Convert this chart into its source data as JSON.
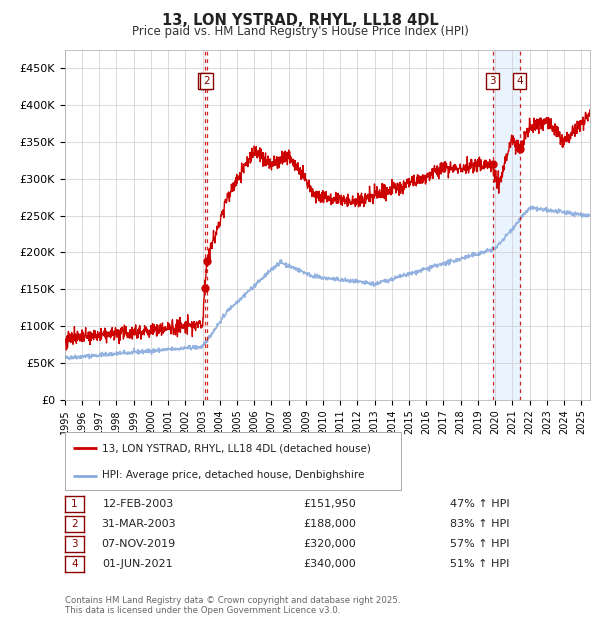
{
  "title": "13, LON YSTRAD, RHYL, LL18 4DL",
  "subtitle": "Price paid vs. HM Land Registry's House Price Index (HPI)",
  "ylabel_ticks": [
    "£0",
    "£50K",
    "£100K",
    "£150K",
    "£200K",
    "£250K",
    "£300K",
    "£350K",
    "£400K",
    "£450K"
  ],
  "ytick_values": [
    0,
    50000,
    100000,
    150000,
    200000,
    250000,
    300000,
    350000,
    400000,
    450000
  ],
  "ylim": [
    0,
    475000
  ],
  "xlim_start": 1995.0,
  "xlim_end": 2025.5,
  "xticks": [
    1995,
    1996,
    1997,
    1998,
    1999,
    2000,
    2001,
    2002,
    2003,
    2004,
    2005,
    2006,
    2007,
    2008,
    2009,
    2010,
    2011,
    2012,
    2013,
    2014,
    2015,
    2016,
    2017,
    2018,
    2019,
    2020,
    2021,
    2022,
    2023,
    2024,
    2025
  ],
  "legend_line1": "13, LON YSTRAD, RHYL, LL18 4DL (detached house)",
  "legend_line2": "HPI: Average price, detached house, Denbighshire",
  "line_color_red": "#cc0000",
  "line_color_blue": "#88aadd",
  "transactions": [
    {
      "num": 1,
      "date_x": 2003.12,
      "price": 151950,
      "label": "1"
    },
    {
      "num": 2,
      "date_x": 2003.25,
      "price": 188000,
      "label": "2"
    },
    {
      "num": 3,
      "date_x": 2019.85,
      "price": 320000,
      "label": "3"
    },
    {
      "num": 4,
      "date_x": 2021.42,
      "price": 340000,
      "label": "4"
    }
  ],
  "table_rows": [
    {
      "num": "1",
      "date": "12-FEB-2003",
      "price": "£151,950",
      "pct": "47% ↑ HPI"
    },
    {
      "num": "2",
      "date": "31-MAR-2003",
      "price": "£188,000",
      "pct": "83% ↑ HPI"
    },
    {
      "num": "3",
      "date": "07-NOV-2019",
      "price": "£320,000",
      "pct": "57% ↑ HPI"
    },
    {
      "num": "4",
      "date": "01-JUN-2021",
      "price": "£340,000",
      "pct": "51% ↑ HPI"
    }
  ],
  "footer": "Contains HM Land Registry data © Crown copyright and database right 2025.\nThis data is licensed under the Open Government Licence v3.0.",
  "background_color": "#ffffff",
  "grid_color": "#cccccc",
  "highlight_shade": "#ddeeff"
}
